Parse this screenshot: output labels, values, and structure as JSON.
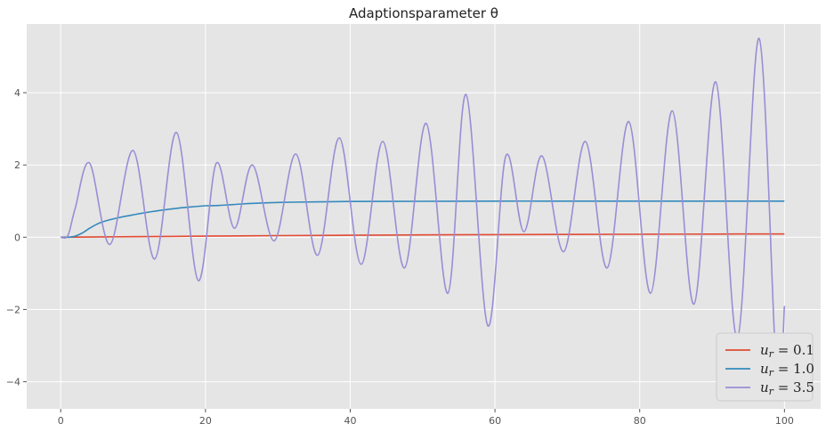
{
  "chart_data": {
    "type": "line",
    "title": "Adaptionsparameter θ",
    "xlabel": "",
    "ylabel": "",
    "xlim": [
      -4.7,
      105
    ],
    "ylim": [
      -4.75,
      5.9
    ],
    "xticks": [
      0,
      20,
      40,
      60,
      80,
      100
    ],
    "xtick_labels": [
      "0",
      "20",
      "40",
      "60",
      "80",
      "100"
    ],
    "yticks": [
      -4,
      -2,
      0,
      2,
      4
    ],
    "ytick_labels": [
      "−4",
      "−2",
      "0",
      "2",
      "4"
    ],
    "grid": true,
    "legend_position": "lower-right",
    "series": [
      {
        "name": "u_r = 0.1",
        "legend_label": "u_r = 0.1",
        "legend_sub": "r",
        "legend_value": "0.1",
        "color": "#e24a33",
        "x": [
          0,
          10,
          20,
          30,
          40,
          50,
          60,
          70,
          80,
          90,
          100
        ],
        "y": [
          0,
          0.015,
          0.03,
          0.045,
          0.055,
          0.065,
          0.072,
          0.078,
          0.083,
          0.087,
          0.09
        ]
      },
      {
        "name": "u_r = 1.0",
        "legend_label": "u_r = 1.0",
        "legend_sub": "r",
        "legend_value": "1.0",
        "color": "#348abd",
        "x": [
          0,
          1,
          2,
          3,
          4,
          5,
          6,
          8,
          10,
          12,
          14,
          16,
          18,
          20,
          22,
          25,
          28,
          32,
          36,
          40,
          50,
          60,
          70,
          80,
          90,
          100
        ],
        "y": [
          0,
          0.0,
          0.03,
          0.12,
          0.25,
          0.36,
          0.44,
          0.54,
          0.62,
          0.69,
          0.75,
          0.8,
          0.84,
          0.87,
          0.88,
          0.92,
          0.95,
          0.97,
          0.98,
          0.99,
          0.995,
          1.0,
          1.0,
          1.0,
          1.0,
          1.0
        ]
      },
      {
        "name": "u_r = 3.5",
        "legend_label": "u_r = 3.5",
        "legend_sub": "r",
        "legend_value": "3.5",
        "color": "#988ed5",
        "x": [
          0,
          1,
          2,
          4,
          6.8,
          10,
          13,
          16,
          19,
          21.5,
          24,
          26.5,
          29.5,
          32.5,
          35.5,
          38.5,
          41.5,
          44.5,
          47.5,
          50.5,
          53.5,
          56,
          59,
          61.5,
          64,
          66.5,
          69.5,
          72.5,
          75.5,
          78.5,
          81.5,
          84.5,
          87.5,
          90.5,
          93.5,
          96.5,
          99,
          100
        ],
        "y": [
          0,
          0.05,
          0.8,
          2.05,
          -0.2,
          2.4,
          -0.6,
          2.9,
          -1.2,
          2.05,
          0.25,
          2.0,
          -0.1,
          2.3,
          -0.5,
          2.75,
          -0.75,
          2.65,
          -0.85,
          3.15,
          -1.55,
          3.95,
          -2.45,
          2.25,
          0.15,
          2.25,
          -0.4,
          2.65,
          -0.85,
          3.2,
          -1.55,
          3.5,
          -1.85,
          4.3,
          -2.8,
          5.5,
          -4.2,
          -1.9
        ]
      }
    ]
  }
}
